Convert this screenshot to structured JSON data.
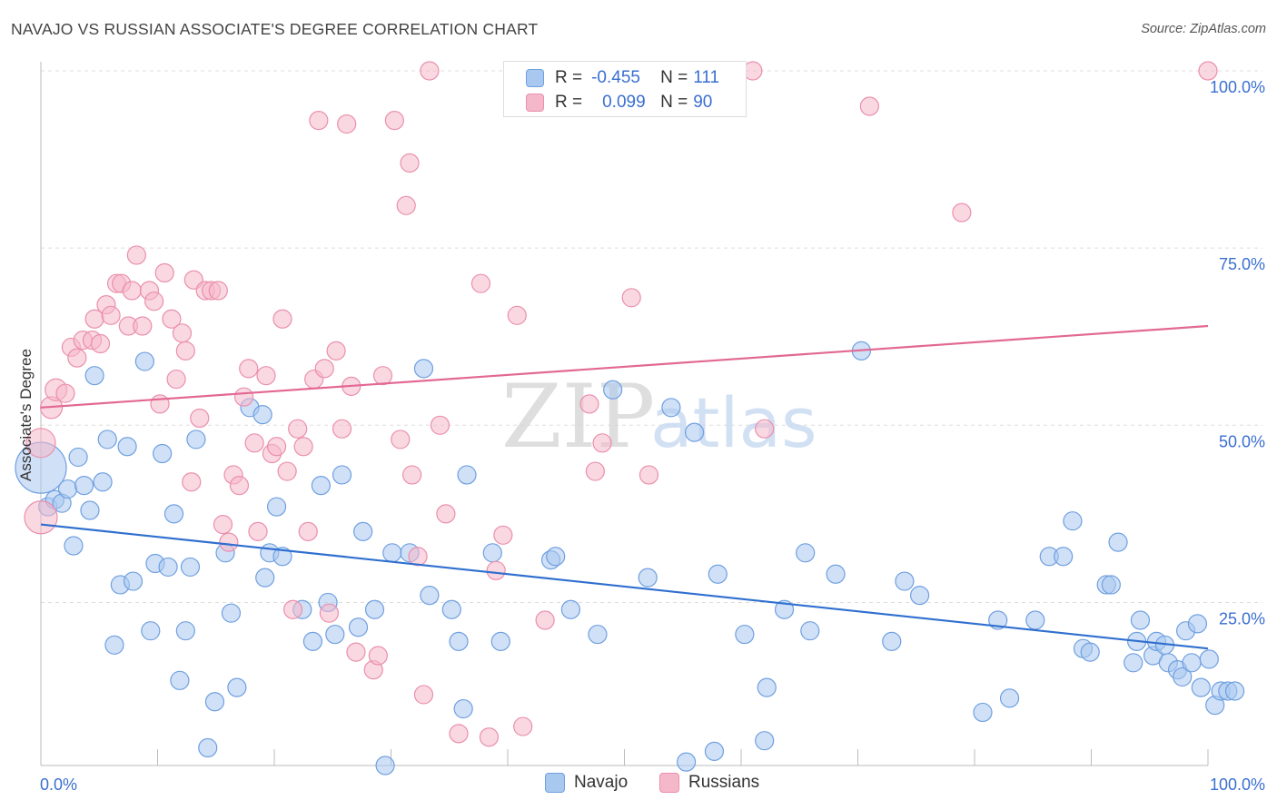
{
  "title": "NAVAJO VS RUSSIAN ASSOCIATE'S DEGREE CORRELATION CHART",
  "source": "Source: ZipAtlas.com",
  "watermark": {
    "zip": "ZIP",
    "atlas": "atlas"
  },
  "legend_top": {
    "rows": [
      {
        "r_label": "R =",
        "r_value": "-0.455",
        "n_label": "N =",
        "n_value": "111"
      },
      {
        "r_label": "R =",
        "r_value": "0.099",
        "n_label": "N =",
        "n_value": "90"
      }
    ]
  },
  "colors": {
    "navajo_fill": "#a9c8f0",
    "navajo_stroke": "#6f9fe0",
    "navajo_line": "#2f6fcf",
    "russian_fill": "#f5b8cb",
    "russian_stroke": "#ea8fac",
    "russian_line": "#e26893",
    "tick_label": "#3a6fd1",
    "grid": "#dddddd"
  },
  "chart_data": {
    "type": "scatter",
    "xlabel": "",
    "ylabel": "Associate's Degree",
    "xlim": [
      0,
      100
    ],
    "ylim": [
      2,
      100
    ],
    "x_tick_labels": [
      "0.0%",
      "100.0%"
    ],
    "y_ticks": [
      25,
      50,
      75,
      100
    ],
    "y_tick_labels": [
      "25.0%",
      "50.0%",
      "75.0%",
      "100.0%"
    ],
    "grid": true,
    "legend_position": "bottom-center",
    "series": [
      {
        "name": "Navajo",
        "r": -0.455,
        "n": 111,
        "trend": {
          "x": [
            0,
            100
          ],
          "y": [
            36.0,
            18.5
          ]
        },
        "points": [
          [
            0,
            44,
            28
          ],
          [
            0.6,
            38.5,
            10
          ],
          [
            1.2,
            39.5,
            10
          ],
          [
            1.8,
            39,
            10
          ],
          [
            2.3,
            41,
            10
          ],
          [
            2.8,
            33,
            10
          ],
          [
            3.2,
            45.5,
            10
          ],
          [
            3.7,
            41.5,
            10
          ],
          [
            4.2,
            38,
            10
          ],
          [
            4.6,
            57,
            10
          ],
          [
            5.3,
            42,
            10
          ],
          [
            5.7,
            48,
            10
          ],
          [
            6.3,
            19,
            10
          ],
          [
            6.8,
            27.5,
            10
          ],
          [
            7.4,
            47,
            10
          ],
          [
            7.9,
            28,
            10
          ],
          [
            8.9,
            59,
            10
          ],
          [
            9.4,
            21,
            10
          ],
          [
            9.8,
            30.5,
            10
          ],
          [
            10.4,
            46,
            10
          ],
          [
            10.9,
            30,
            10
          ],
          [
            11.4,
            37.5,
            10
          ],
          [
            11.9,
            14,
            10
          ],
          [
            12.4,
            21,
            10
          ],
          [
            12.8,
            30,
            10
          ],
          [
            13.3,
            48,
            10
          ],
          [
            14.3,
            4.5,
            10
          ],
          [
            14.9,
            11,
            10
          ],
          [
            15.8,
            32,
            10
          ],
          [
            16.3,
            23.5,
            10
          ],
          [
            16.8,
            13,
            10
          ],
          [
            17.9,
            52.5,
            10
          ],
          [
            19.0,
            51.5,
            10
          ],
          [
            19.2,
            28.5,
            10
          ],
          [
            19.6,
            32,
            10
          ],
          [
            20.2,
            38.5,
            10
          ],
          [
            20.7,
            31.5,
            10
          ],
          [
            22.4,
            24,
            10
          ],
          [
            23.3,
            19.5,
            10
          ],
          [
            24.0,
            41.5,
            10
          ],
          [
            24.6,
            25,
            10
          ],
          [
            25.2,
            20.5,
            10
          ],
          [
            25.8,
            43,
            10
          ],
          [
            27.2,
            21.5,
            10
          ],
          [
            27.6,
            35,
            10
          ],
          [
            28.6,
            24,
            10
          ],
          [
            29.5,
            2,
            10
          ],
          [
            30.1,
            32,
            10
          ],
          [
            31.6,
            32,
            10
          ],
          [
            32.8,
            58,
            10
          ],
          [
            33.3,
            26,
            10
          ],
          [
            35.2,
            24,
            10
          ],
          [
            35.8,
            19.5,
            10
          ],
          [
            36.2,
            10,
            10
          ],
          [
            36.5,
            43,
            10
          ],
          [
            38.7,
            32,
            10
          ],
          [
            39.4,
            19.5,
            10
          ],
          [
            43.7,
            31,
            10
          ],
          [
            44.1,
            31.5,
            10
          ],
          [
            45.4,
            24,
            10
          ],
          [
            47.7,
            20.5,
            10
          ],
          [
            49.0,
            55,
            10
          ],
          [
            52.0,
            28.5,
            10
          ],
          [
            54.0,
            52.5,
            10
          ],
          [
            55.3,
            2.5,
            10
          ],
          [
            56.0,
            49,
            10
          ],
          [
            57.7,
            4,
            10
          ],
          [
            58.0,
            29,
            10
          ],
          [
            60.3,
            20.5,
            10
          ],
          [
            62.0,
            5.5,
            10
          ],
          [
            62.2,
            13,
            10
          ],
          [
            63.7,
            24,
            10
          ],
          [
            65.5,
            32,
            10
          ],
          [
            65.9,
            21,
            10
          ],
          [
            68.1,
            29,
            10
          ],
          [
            70.3,
            60.5,
            10
          ],
          [
            72.9,
            19.5,
            10
          ],
          [
            74.0,
            28,
            10
          ],
          [
            75.3,
            26,
            10
          ],
          [
            80.7,
            9.5,
            10
          ],
          [
            82.0,
            22.5,
            10
          ],
          [
            83.0,
            11.5,
            10
          ],
          [
            85.2,
            22.5,
            10
          ],
          [
            86.4,
            31.5,
            10
          ],
          [
            87.6,
            31.5,
            10
          ],
          [
            88.4,
            36.5,
            10
          ],
          [
            89.3,
            18.5,
            10
          ],
          [
            89.9,
            18,
            10
          ],
          [
            91.3,
            27.5,
            10
          ],
          [
            91.7,
            27.5,
            10
          ],
          [
            92.3,
            33.5,
            10
          ],
          [
            93.6,
            16.5,
            10
          ],
          [
            93.9,
            19.5,
            10
          ],
          [
            94.2,
            22.5,
            10
          ],
          [
            95.3,
            17.5,
            10
          ],
          [
            95.6,
            19.5,
            10
          ],
          [
            96.3,
            19,
            10
          ],
          [
            96.6,
            16.5,
            10
          ],
          [
            97.4,
            15.5,
            10
          ],
          [
            97.8,
            14.5,
            10
          ],
          [
            98.1,
            21,
            10
          ],
          [
            98.6,
            16.5,
            10
          ],
          [
            99.1,
            22,
            10
          ],
          [
            99.4,
            13,
            10
          ],
          [
            100.1,
            17,
            10
          ],
          [
            100.6,
            10.5,
            10
          ],
          [
            101.1,
            12.5,
            10
          ],
          [
            101.7,
            12.5,
            10
          ],
          [
            102.3,
            12.5,
            10
          ]
        ]
      },
      {
        "name": "Russians",
        "r": 0.099,
        "n": 90,
        "trend": {
          "x": [
            0,
            100
          ],
          "y": [
            52.5,
            64.0
          ]
        },
        "points": [
          [
            0,
            37,
            18
          ],
          [
            0,
            47.5,
            16
          ],
          [
            0.9,
            52.5,
            12
          ],
          [
            1.3,
            55,
            12
          ],
          [
            2.1,
            54.5,
            10
          ],
          [
            2.6,
            61,
            10
          ],
          [
            3.1,
            59.5,
            10
          ],
          [
            3.6,
            62,
            10
          ],
          [
            4.4,
            62,
            10
          ],
          [
            4.6,
            65,
            10
          ],
          [
            5.1,
            61.5,
            10
          ],
          [
            5.6,
            67,
            10
          ],
          [
            6.0,
            65.5,
            10
          ],
          [
            6.5,
            70,
            10
          ],
          [
            6.9,
            70,
            10
          ],
          [
            7.5,
            64,
            10
          ],
          [
            7.8,
            69,
            10
          ],
          [
            8.2,
            74,
            10
          ],
          [
            8.7,
            64,
            10
          ],
          [
            9.3,
            69,
            10
          ],
          [
            9.7,
            67.5,
            10
          ],
          [
            10.2,
            53,
            10
          ],
          [
            10.6,
            71.5,
            10
          ],
          [
            11.2,
            65,
            10
          ],
          [
            11.6,
            56.5,
            10
          ],
          [
            12.1,
            63,
            10
          ],
          [
            12.4,
            60.5,
            10
          ],
          [
            12.9,
            42,
            10
          ],
          [
            13.1,
            70.5,
            10
          ],
          [
            13.6,
            51,
            10
          ],
          [
            14.1,
            69,
            10
          ],
          [
            14.6,
            69,
            10
          ],
          [
            15.2,
            69,
            10
          ],
          [
            15.6,
            36,
            10
          ],
          [
            16.1,
            33.5,
            10
          ],
          [
            16.5,
            43,
            10
          ],
          [
            17.0,
            41.5,
            10
          ],
          [
            17.4,
            54,
            10
          ],
          [
            17.8,
            58,
            10
          ],
          [
            18.3,
            47.5,
            10
          ],
          [
            18.6,
            35,
            10
          ],
          [
            19.3,
            57,
            10
          ],
          [
            19.8,
            46,
            10
          ],
          [
            20.2,
            47,
            10
          ],
          [
            20.7,
            65,
            10
          ],
          [
            21.1,
            43.5,
            10
          ],
          [
            21.6,
            24,
            10
          ],
          [
            22.0,
            49.5,
            10
          ],
          [
            22.5,
            47,
            10
          ],
          [
            22.9,
            35,
            10
          ],
          [
            23.4,
            56.5,
            10
          ],
          [
            23.8,
            93,
            10
          ],
          [
            24.3,
            58,
            10
          ],
          [
            24.7,
            23.5,
            10
          ],
          [
            25.3,
            60.5,
            10
          ],
          [
            25.8,
            49.5,
            10
          ],
          [
            26.2,
            92.5,
            10
          ],
          [
            26.6,
            55.5,
            10
          ],
          [
            27.0,
            18,
            10
          ],
          [
            28.5,
            15.5,
            10
          ],
          [
            28.9,
            17.5,
            10
          ],
          [
            29.3,
            57,
            10
          ],
          [
            30.3,
            93,
            10
          ],
          [
            30.8,
            48,
            10
          ],
          [
            31.3,
            81,
            10
          ],
          [
            31.6,
            87,
            10
          ],
          [
            31.8,
            43,
            10
          ],
          [
            32.3,
            31.5,
            10
          ],
          [
            32.8,
            12,
            10
          ],
          [
            33.3,
            100,
            10
          ],
          [
            34.2,
            50,
            10
          ],
          [
            34.7,
            37.5,
            10
          ],
          [
            35.8,
            6.5,
            10
          ],
          [
            37.7,
            70,
            10
          ],
          [
            38.4,
            6,
            10
          ],
          [
            39.0,
            29.5,
            10
          ],
          [
            39.6,
            34.5,
            10
          ],
          [
            40.8,
            65.5,
            10
          ],
          [
            41.3,
            7.5,
            10
          ],
          [
            43.2,
            22.5,
            10
          ],
          [
            47.0,
            53,
            10
          ],
          [
            47.5,
            43.5,
            10
          ],
          [
            48.1,
            47.5,
            10
          ],
          [
            50.6,
            68,
            10
          ],
          [
            52.1,
            43,
            10
          ],
          [
            59.3,
            100,
            10
          ],
          [
            61.0,
            100,
            10
          ],
          [
            62.0,
            49.5,
            10
          ],
          [
            71.0,
            95,
            10
          ],
          [
            78.9,
            80,
            10
          ],
          [
            100.0,
            100,
            10
          ]
        ]
      }
    ]
  }
}
